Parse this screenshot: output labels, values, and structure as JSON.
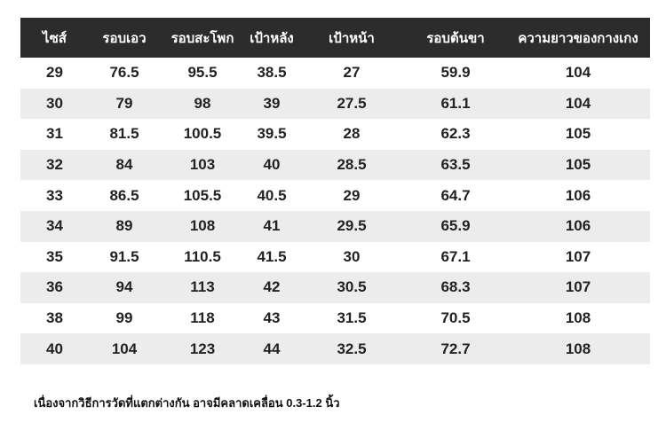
{
  "table": {
    "headers": [
      "ไซส์",
      "รอบเอว",
      "รอบสะโพก",
      "เป้าหลัง",
      "เป้าหน้า",
      "รอบต้นขา",
      "ความยาวของกางเกง"
    ],
    "rows": [
      [
        "29",
        "76.5",
        "95.5",
        "38.5",
        "27",
        "59.9",
        "104"
      ],
      [
        "30",
        "79",
        "98",
        "39",
        "27.5",
        "61.1",
        "104"
      ],
      [
        "31",
        "81.5",
        "100.5",
        "39.5",
        "28",
        "62.3",
        "105"
      ],
      [
        "32",
        "84",
        "103",
        "40",
        "28.5",
        "63.5",
        "105"
      ],
      [
        "33",
        "86.5",
        "105.5",
        "40.5",
        "29",
        "64.7",
        "106"
      ],
      [
        "34",
        "89",
        "108",
        "41",
        "29.5",
        "65.9",
        "106"
      ],
      [
        "35",
        "91.5",
        "110.5",
        "41.5",
        "30",
        "67.1",
        "107"
      ],
      [
        "36",
        "94",
        "113",
        "42",
        "30.5",
        "68.3",
        "107"
      ],
      [
        "38",
        "99",
        "118",
        "43",
        "31.5",
        "70.5",
        "108"
      ],
      [
        "40",
        "104",
        "123",
        "44",
        "32.5",
        "72.7",
        "108"
      ]
    ]
  },
  "note": "เนื่องจากวิธีการวัดที่แตกต่างกัน อาจมีคลาดเคลื่อน 0.3-1.2 นิ้ว",
  "colors": {
    "header_bg": "#2c2c2c",
    "header_text": "#ffffff",
    "stripe": "#ececec"
  }
}
